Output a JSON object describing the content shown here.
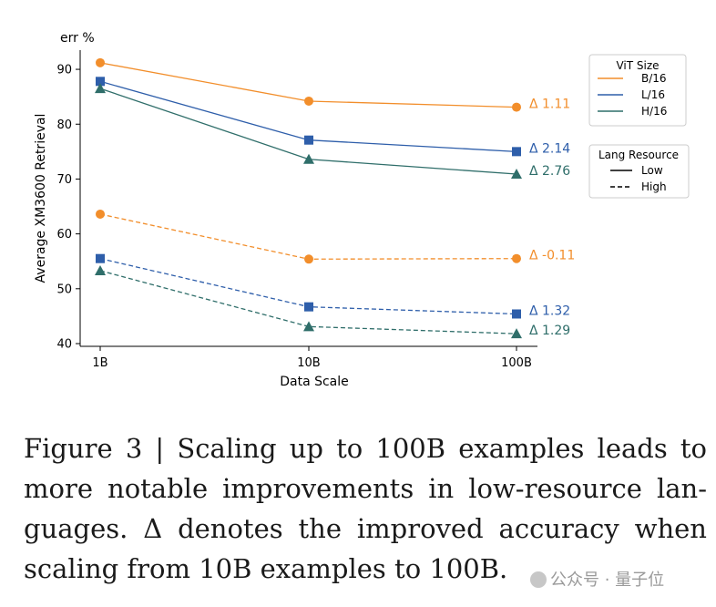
{
  "chart_data": {
    "type": "line",
    "xlabel": "Data Scale",
    "ylabel": "Average XM3600 Retrieval",
    "yunit_label": "err %",
    "categories": [
      "1B",
      "10B",
      "100B"
    ],
    "ylim": [
      39.5,
      93.5
    ],
    "yticks": [
      40,
      50,
      60,
      70,
      80,
      90
    ],
    "series": [
      {
        "name": "B/16 Low",
        "vit": "B/16",
        "resource": "Low",
        "color": "#f28e2b",
        "marker": "circle",
        "dash": false,
        "values": [
          91.2,
          84.2,
          83.1
        ],
        "delta": "Δ 1.11"
      },
      {
        "name": "L/16 Low",
        "vit": "L/16",
        "resource": "Low",
        "color": "#2e5eaa",
        "marker": "square",
        "dash": false,
        "values": [
          87.8,
          77.1,
          75.0
        ],
        "delta": "Δ 2.14"
      },
      {
        "name": "H/16 Low",
        "vit": "H/16",
        "resource": "Low",
        "color": "#2f6e6a",
        "marker": "triangle",
        "dash": false,
        "values": [
          86.5,
          73.6,
          70.9
        ],
        "delta": "Δ 2.76"
      },
      {
        "name": "B/16 High",
        "vit": "B/16",
        "resource": "High",
        "color": "#f28e2b",
        "marker": "circle",
        "dash": true,
        "values": [
          63.6,
          55.4,
          55.5
        ],
        "delta": "Δ -0.11"
      },
      {
        "name": "L/16 High",
        "vit": "L/16",
        "resource": "High",
        "color": "#2e5eaa",
        "marker": "square",
        "dash": true,
        "values": [
          55.5,
          46.7,
          45.4
        ],
        "delta": "Δ 1.32"
      },
      {
        "name": "H/16 High",
        "vit": "H/16",
        "resource": "High",
        "color": "#2f6e6a",
        "marker": "triangle",
        "dash": true,
        "values": [
          53.3,
          43.1,
          41.8
        ],
        "delta": "Δ 1.29"
      }
    ],
    "legend_vit": {
      "title": "ViT Size",
      "placement": "top-right",
      "entries": [
        {
          "label": "B/16",
          "color": "#f28e2b"
        },
        {
          "label": "L/16",
          "color": "#2e5eaa"
        },
        {
          "label": "H/16",
          "color": "#2f6e6a"
        }
      ]
    },
    "legend_resource": {
      "title": "Lang Resource",
      "placement": "right",
      "entries": [
        {
          "label": "Low",
          "dash": false
        },
        {
          "label": "High",
          "dash": true
        }
      ]
    }
  },
  "caption": "Figure 3 | Scaling up to 100B examples leads to more notable improvements in low-resource lan-guages. Δ denotes the improved accuracy when scaling from 10B examples to 100B.",
  "watermark": "公众号 · 量子位"
}
